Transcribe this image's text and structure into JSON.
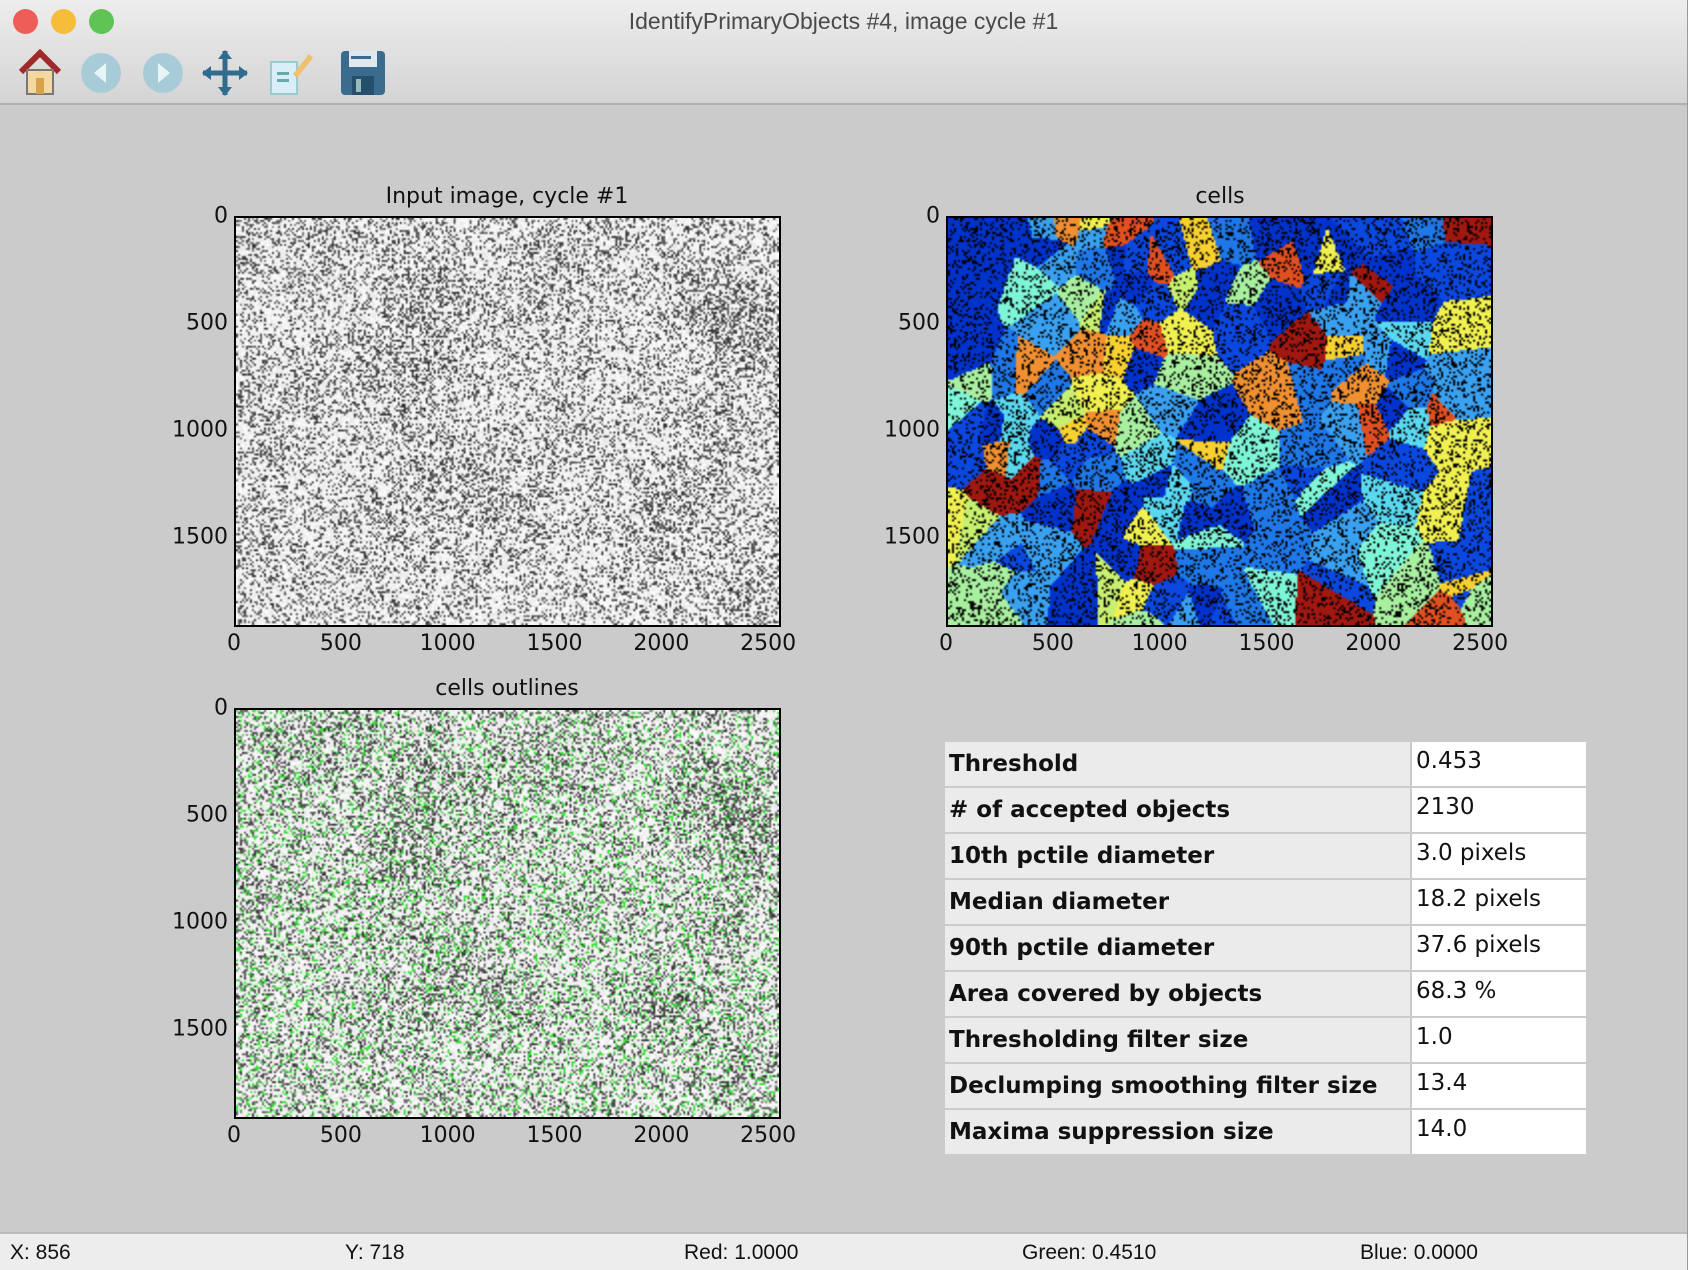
{
  "window": {
    "title": "IdentifyPrimaryObjects #4, image cycle #1"
  },
  "toolbar": [
    {
      "name": "home-icon",
      "label": "Home"
    },
    {
      "name": "back-icon",
      "label": "Back"
    },
    {
      "name": "forward-icon",
      "label": "Forward"
    },
    {
      "name": "pan-icon",
      "label": "Pan"
    },
    {
      "name": "edit-axes-icon",
      "label": "Edit"
    },
    {
      "name": "save-icon",
      "label": "Save"
    }
  ],
  "plots": [
    {
      "title": "Input image, cycle #1",
      "kind": "grayscale"
    },
    {
      "title": "cells",
      "kind": "labels"
    },
    {
      "title": "cells outlines",
      "kind": "outlines"
    }
  ],
  "axis": {
    "x_ticks": [
      "0",
      "500",
      "1000",
      "1500",
      "2000",
      "2500"
    ],
    "y_ticks": [
      "0",
      "500",
      "1000",
      "1500"
    ],
    "x_values": [
      0,
      500,
      1000,
      1500,
      2000,
      2500
    ],
    "y_values": [
      0,
      500,
      1000,
      1500
    ],
    "x_range": [
      0,
      2560
    ],
    "y_range": [
      0,
      1920
    ]
  },
  "table": [
    {
      "key": "Threshold",
      "value": "0.453"
    },
    {
      "key": "# of accepted objects",
      "value": "2130"
    },
    {
      "key": "10th pctile diameter",
      "value": "3.0 pixels"
    },
    {
      "key": "Median diameter",
      "value": "18.2 pixels"
    },
    {
      "key": "90th pctile diameter",
      "value": "37.6 pixels"
    },
    {
      "key": "Area covered by objects",
      "value": "68.3 %"
    },
    {
      "key": "Thresholding filter size",
      "value": "1.0"
    },
    {
      "key": "Declumping smoothing filter size",
      "value": "13.4"
    },
    {
      "key": "Maxima suppression size",
      "value": "14.0"
    }
  ],
  "status": {
    "x": "X: 856",
    "y": "Y: 718",
    "red": "Red: 1.0000",
    "green": "Green: 0.4510",
    "blue": "Blue: 0.0000"
  },
  "colors": {
    "outline": "#33dd33",
    "label_palette": [
      "#0033cc",
      "#0a48e0",
      "#1f78e8",
      "#3aa0f0",
      "#5ad8f0",
      "#7ff5d8",
      "#a8f0a0",
      "#c8f070",
      "#f0f050",
      "#f8d030",
      "#f09030",
      "#e05020",
      "#a01810"
    ]
  }
}
